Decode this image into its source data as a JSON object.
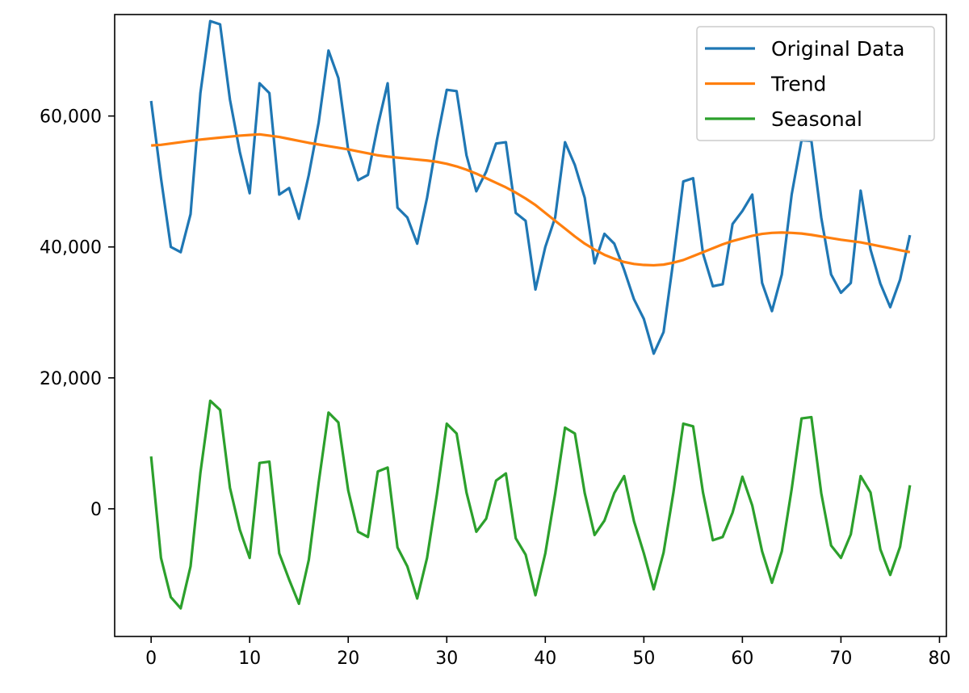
{
  "chart_data": {
    "type": "line",
    "title": "",
    "xlabel": "",
    "ylabel": "",
    "xlim": [
      -3.7,
      80.7
    ],
    "ylim": [
      -19500,
      75500
    ],
    "xticks": [
      0,
      10,
      20,
      30,
      40,
      50,
      60,
      70,
      80
    ],
    "xtick_labels": [
      "0",
      "10",
      "20",
      "30",
      "40",
      "50",
      "60",
      "70",
      "80"
    ],
    "yticks": [
      0,
      20000,
      40000,
      60000
    ],
    "ytick_labels": [
      "0",
      "20,000",
      "40,000",
      "60,000"
    ],
    "grid": false,
    "legend_position": "top-right",
    "series": [
      {
        "name": "Original Data",
        "color": "#1f77b4",
        "x": [
          0,
          1,
          2,
          3,
          4,
          5,
          6,
          7,
          8,
          9,
          10,
          11,
          12,
          13,
          14,
          15,
          16,
          17,
          18,
          19,
          20,
          21,
          22,
          23,
          24,
          25,
          26,
          27,
          28,
          29,
          30,
          31,
          32,
          33,
          34,
          35,
          36,
          37,
          38,
          39,
          40,
          41,
          42,
          43,
          44,
          45,
          46,
          47,
          48,
          49,
          50,
          51,
          52,
          53,
          54,
          55,
          56,
          57,
          58,
          59,
          60,
          61,
          62,
          63,
          64,
          65,
          66,
          67,
          68,
          69,
          70,
          71,
          72,
          73,
          74,
          75,
          76,
          77
        ],
        "values": [
          62300,
          50500,
          40000,
          39200,
          45000,
          63500,
          74500,
          74000,
          62500,
          54500,
          48200,
          65000,
          63500,
          48000,
          49000,
          44300,
          51000,
          59000,
          70000,
          65800,
          54800,
          50200,
          51000,
          58500,
          65000,
          46000,
          44500,
          40500,
          47500,
          56300,
          64000,
          63800,
          54000,
          48500,
          51500,
          55800,
          56000,
          45200,
          44000,
          33500,
          40000,
          44500,
          56000,
          52500,
          47500,
          37500,
          42000,
          40500,
          36500,
          32000,
          29000,
          23700,
          27000,
          38000,
          50000,
          50500,
          39000,
          34000,
          34300,
          43500,
          45500,
          48000,
          34500,
          30200,
          35800,
          48000,
          56300,
          56200,
          44500,
          35800,
          33000,
          34500,
          48600,
          39600,
          34400,
          30800,
          35000,
          41800
        ]
      },
      {
        "name": "Trend",
        "color": "#ff7f0e",
        "x": [
          0,
          1,
          2,
          3,
          4,
          5,
          6,
          7,
          8,
          9,
          10,
          11,
          12,
          13,
          14,
          15,
          16,
          17,
          18,
          19,
          20,
          21,
          22,
          23,
          24,
          25,
          26,
          27,
          28,
          29,
          30,
          31,
          32,
          33,
          34,
          35,
          36,
          37,
          38,
          39,
          40,
          41,
          42,
          43,
          44,
          45,
          46,
          47,
          48,
          49,
          50,
          51,
          52,
          53,
          54,
          55,
          56,
          57,
          58,
          59,
          60,
          61,
          62,
          63,
          64,
          65,
          66,
          67,
          68,
          69,
          70,
          71,
          72,
          73,
          74,
          75,
          76,
          77
        ],
        "values": [
          55500,
          55600,
          55800,
          56000,
          56200,
          56400,
          56550,
          56700,
          56850,
          57000,
          57100,
          57200,
          57000,
          56800,
          56500,
          56200,
          55900,
          55650,
          55400,
          55150,
          54900,
          54600,
          54300,
          54000,
          53800,
          53650,
          53500,
          53350,
          53200,
          53000,
          52700,
          52300,
          51800,
          51200,
          50500,
          49800,
          49100,
          48300,
          47400,
          46400,
          45200,
          44000,
          42800,
          41600,
          40500,
          39600,
          38800,
          38200,
          37700,
          37400,
          37250,
          37200,
          37300,
          37600,
          38000,
          38600,
          39200,
          39800,
          40400,
          40900,
          41300,
          41700,
          42000,
          42150,
          42200,
          42150,
          42050,
          41850,
          41600,
          41350,
          41100,
          40900,
          40700,
          40400,
          40100,
          39800,
          39500,
          39200
        ]
      },
      {
        "name": "Seasonal",
        "color": "#2ca02c",
        "x": [
          0,
          1,
          2,
          3,
          4,
          5,
          6,
          7,
          8,
          9,
          10,
          11,
          12,
          13,
          14,
          15,
          16,
          17,
          18,
          19,
          20,
          21,
          22,
          23,
          24,
          25,
          26,
          27,
          28,
          29,
          30,
          31,
          32,
          33,
          34,
          35,
          36,
          37,
          38,
          39,
          40,
          41,
          42,
          43,
          44,
          45,
          46,
          47,
          48,
          49,
          50,
          51,
          52,
          53,
          54,
          55,
          56,
          57,
          58,
          59,
          60,
          61,
          62,
          63,
          64,
          65,
          66,
          67,
          68,
          69,
          70,
          71,
          72,
          73,
          74,
          75,
          76,
          77
        ],
        "values": [
          8000,
          -7500,
          -13500,
          -15200,
          -8800,
          5500,
          16500,
          15100,
          3200,
          -3200,
          -7500,
          7000,
          7200,
          -6800,
          -10800,
          -14500,
          -7800,
          4000,
          14700,
          13200,
          2800,
          -3500,
          -4300,
          5700,
          6300,
          -5900,
          -8800,
          -13700,
          -7500,
          2200,
          13000,
          11500,
          2500,
          -3500,
          -1500,
          4300,
          5400,
          -4500,
          -7000,
          -13200,
          -6800,
          2300,
          12400,
          11500,
          2400,
          -4000,
          -1800,
          2400,
          5000,
          -1900,
          -6800,
          -12300,
          -6700,
          2500,
          13000,
          12600,
          2500,
          -4800,
          -4300,
          -600,
          4900,
          500,
          -6500,
          -11300,
          -6500,
          3000,
          13800,
          14000,
          2400,
          -5600,
          -7500,
          -3900,
          5000,
          2500,
          -6200,
          -10100,
          -5800,
          3600
        ]
      }
    ]
  }
}
